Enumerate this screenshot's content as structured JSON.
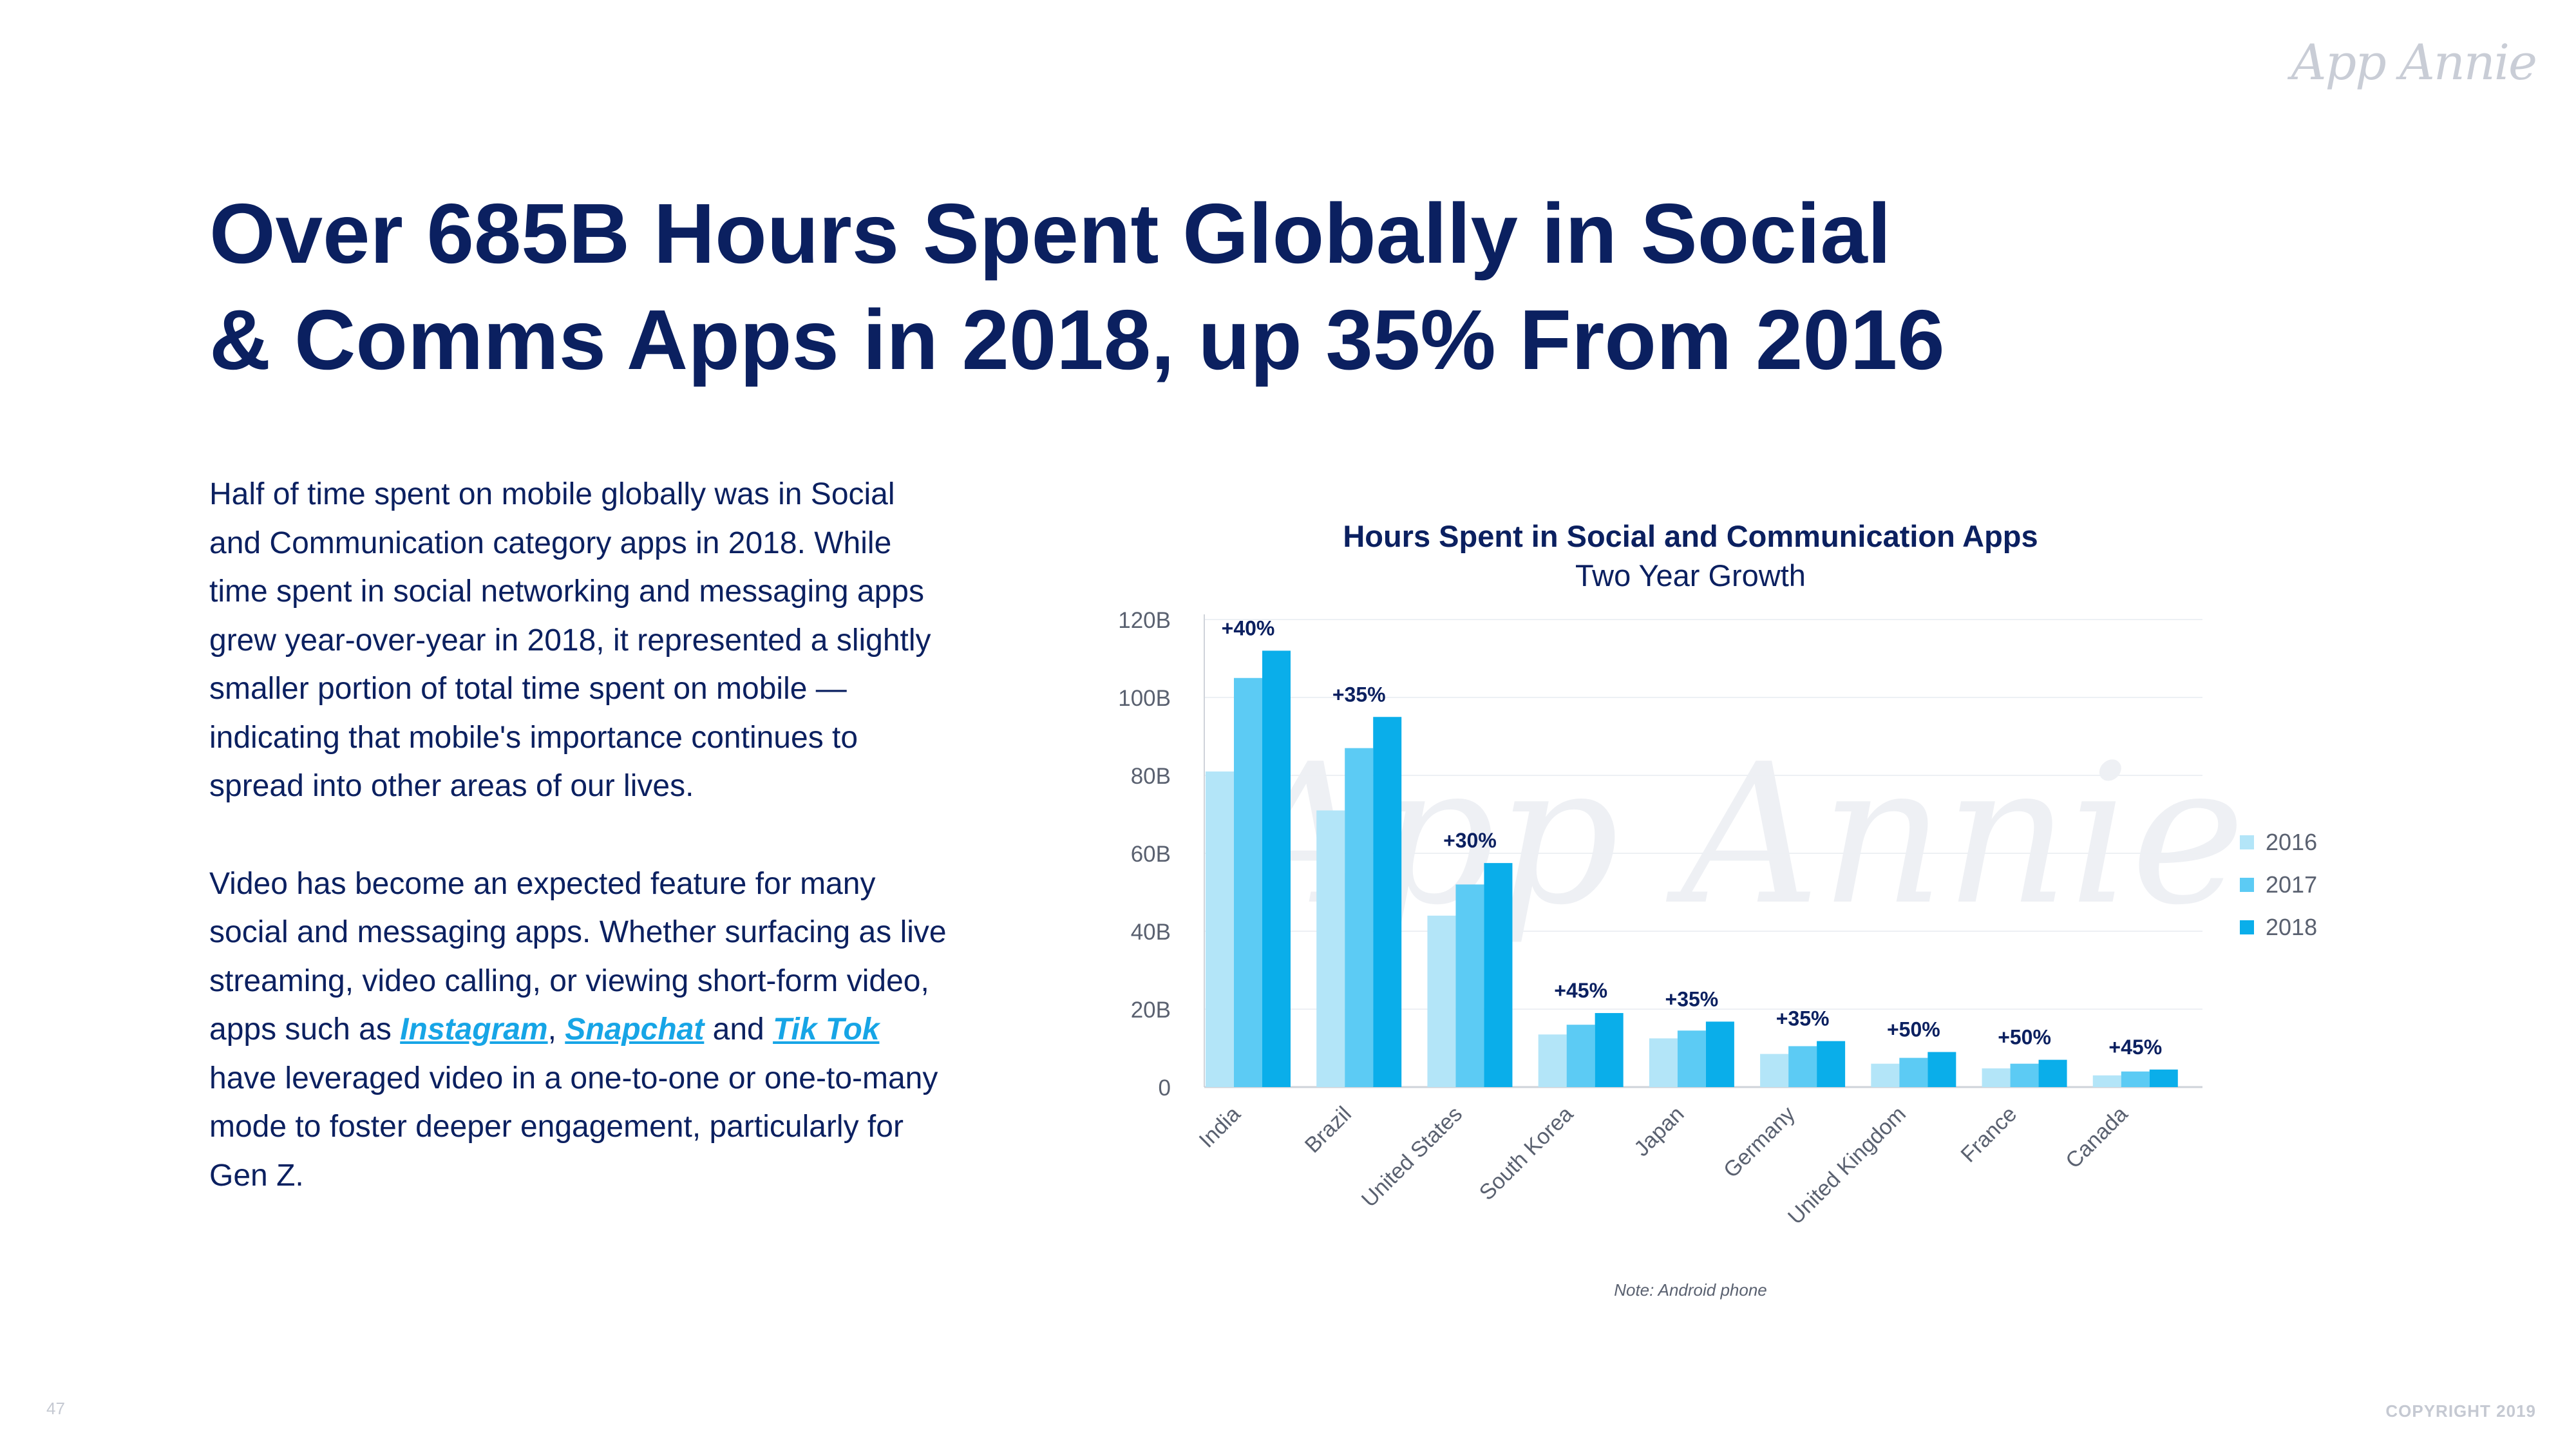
{
  "brand": {
    "logo_text": "App Annie",
    "watermark_text": "App Annie"
  },
  "title": {
    "line1": "Over 685B Hours Spent Globally in Social",
    "line2": "& Comms Apps in 2018, up 35% From 2016"
  },
  "body": {
    "p1": "Half of time spent on mobile globally was in Social and Communication category apps in 2018. While time spent in social networking and messaging apps grew year-over-year in 2018, it represented a slightly smaller portion of total time spent on mobile — indicating that mobile's importance continues to spread into other areas of our lives.",
    "p2_before": "Video has become an expected feature for many social and messaging apps. Whether surfacing as live streaming, video calling, or viewing short-form video, apps such as ",
    "link_instagram": "Instagram",
    "comma": ",",
    "link_snapchat": "Snapchat",
    "p2_and": " and ",
    "link_tiktok": "Tik Tok",
    "p2_after": " have leveraged video in a one-to-one or one-to-many mode to foster deeper engagement, particularly for Gen Z."
  },
  "footer": {
    "page_number": "47",
    "copyright": "COPYRIGHT 2019"
  },
  "chart_data": {
    "type": "bar",
    "title": "Hours Spent in Social and Communication Apps",
    "subtitle": "Two Year Growth",
    "note": "Note: Android phone",
    "categories": [
      "India",
      "Brazil",
      "United States",
      "South Korea",
      "Japan",
      "Germany",
      "United Kingdom",
      "France",
      "Canada"
    ],
    "series": [
      {
        "name": "2016",
        "color": "#b3e5f8",
        "values": [
          81,
          71,
          44,
          13.5,
          12.5,
          8.5,
          6,
          4.8,
          3
        ]
      },
      {
        "name": "2017",
        "color": "#5ccbf4",
        "values": [
          105,
          87,
          52,
          16,
          14.5,
          10.5,
          7.5,
          6,
          4
        ]
      },
      {
        "name": "2018",
        "color": "#0aaeea",
        "values": [
          112,
          95,
          57.5,
          19,
          16.8,
          11.8,
          9,
          7,
          4.5
        ]
      }
    ],
    "growth_labels": [
      "+40%",
      "+35%",
      "+30%",
      "+45%",
      "+35%",
      "+35%",
      "+50%",
      "+50%",
      "+45%"
    ],
    "yticks": [
      "0",
      "20B",
      "40B",
      "60B",
      "80B",
      "100B",
      "120B"
    ],
    "ylim": [
      0,
      120
    ],
    "legend_position": "right",
    "grid": true
  }
}
